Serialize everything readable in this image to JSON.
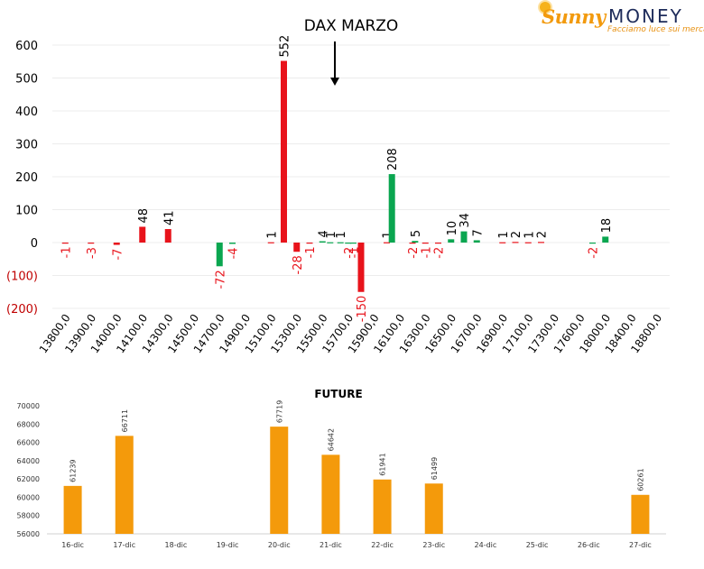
{
  "brand": {
    "name_part1": "Sunny",
    "name_part2": "MONEY",
    "tagline": "Facciamo luce sui mercati"
  },
  "colors": {
    "negative": "#e8131b",
    "positive": "#0aa650",
    "future_bar": "#f49a0b",
    "negative_tick": "#c00000"
  },
  "chart_data": [
    {
      "type": "bar",
      "title": "DAX MARZO",
      "annotation": "down-arrow-under-title",
      "xlabel": "",
      "ylabel": "",
      "ylim": [
        -200,
        600
      ],
      "y_ticks": [
        600,
        500,
        400,
        300,
        200,
        100,
        0,
        -100,
        -200
      ],
      "y_tick_labels": [
        "600",
        "500",
        "400",
        "300",
        "200",
        "100",
        "0",
        "(100)",
        "(200)"
      ],
      "x_tick_labels": [
        "13800,0",
        "13900,0",
        "14000,0",
        "14100,0",
        "14300,0",
        "14500,0",
        "14700,0",
        "14900,0",
        "15100,0",
        "15300,0",
        "15500,0",
        "15700,0",
        "15900,0",
        "16100,0",
        "16300,0",
        "16500,0",
        "16700,0",
        "16900,0",
        "17100,0",
        "17300,0",
        "17600,0",
        "18000,0",
        "18400,0",
        "18800,0"
      ],
      "grid": true,
      "series": [
        {
          "color": "#e8131b",
          "points": [
            {
              "x": 0.0,
              "y": -1
            },
            {
              "x": 1.0,
              "y": -3
            },
            {
              "x": 2.0,
              "y": -7
            },
            {
              "x": 3.0,
              "y": 48
            },
            {
              "x": 4.0,
              "y": 41
            },
            {
              "x": 8.0,
              "y": 1
            },
            {
              "x": 8.5,
              "y": 552
            },
            {
              "x": 9.0,
              "y": -28
            },
            {
              "x": 9.5,
              "y": -1
            },
            {
              "x": 11.5,
              "y": -150
            },
            {
              "x": 12.5,
              "y": 1
            },
            {
              "x": 13.5,
              "y": -2
            },
            {
              "x": 14.0,
              "y": -1
            },
            {
              "x": 14.5,
              "y": -2
            },
            {
              "x": 17.0,
              "y": 1
            },
            {
              "x": 17.5,
              "y": 2
            },
            {
              "x": 18.0,
              "y": 1
            },
            {
              "x": 18.5,
              "y": 2
            }
          ]
        },
        {
          "color": "#0aa650",
          "points": [
            {
              "x": 6.0,
              "y": -72
            },
            {
              "x": 6.5,
              "y": -4
            },
            {
              "x": 10.0,
              "y": 4
            },
            {
              "x": 10.3,
              "y": 1
            },
            {
              "x": 10.7,
              "y": 1
            },
            {
              "x": 11.0,
              "y": -2
            },
            {
              "x": 11.2,
              "y": -1
            },
            {
              "x": 12.7,
              "y": 208
            },
            {
              "x": 13.6,
              "y": 5
            },
            {
              "x": 15.0,
              "y": 10
            },
            {
              "x": 15.5,
              "y": 34
            },
            {
              "x": 16.0,
              "y": 7
            },
            {
              "x": 20.5,
              "y": -2
            },
            {
              "x": 21.0,
              "y": 18
            }
          ]
        }
      ]
    },
    {
      "type": "bar",
      "title": "FUTURE",
      "xlabel": "",
      "ylabel": "",
      "ylim": [
        56000,
        70000
      ],
      "y_ticks": [
        70000,
        68000,
        66000,
        64000,
        62000,
        60000,
        58000,
        56000
      ],
      "categories": [
        "16-dic",
        "17-dic",
        "18-dic",
        "19-dic",
        "20-dic",
        "21-dic",
        "22-dic",
        "23-dic",
        "24-dic",
        "25-dic",
        "26-dic",
        "27-dic"
      ],
      "values": [
        61239,
        66711,
        null,
        null,
        67719,
        64642,
        61941,
        61499,
        null,
        null,
        null,
        60261
      ],
      "color": "#f49a0b",
      "grid": false
    }
  ]
}
